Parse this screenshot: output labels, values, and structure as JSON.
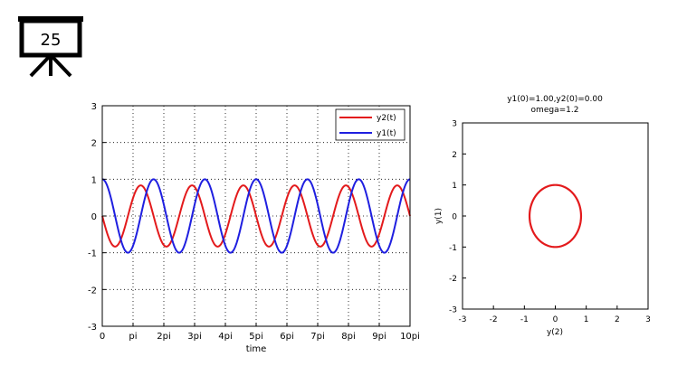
{
  "slide": {
    "number": "25"
  },
  "chart_data": [
    {
      "type": "line",
      "title": "",
      "xlabel": "time",
      "ylabel": "",
      "xlim": [
        0,
        31.4159
      ],
      "ylim": [
        -3,
        3
      ],
      "x_ticks": [
        {
          "value": 0,
          "label": "0"
        },
        {
          "value": 3.1416,
          "label": "pi"
        },
        {
          "value": 6.2832,
          "label": "2pi"
        },
        {
          "value": 9.4248,
          "label": "3pi"
        },
        {
          "value": 12.5664,
          "label": "4pi"
        },
        {
          "value": 15.708,
          "label": "5pi"
        },
        {
          "value": 18.8496,
          "label": "6pi"
        },
        {
          "value": 21.9911,
          "label": "7pi"
        },
        {
          "value": 25.1327,
          "label": "8pi"
        },
        {
          "value": 28.2743,
          "label": "9pi"
        },
        {
          "value": 31.4159,
          "label": "10pi"
        }
      ],
      "y_ticks": [
        "3",
        "2",
        "1",
        "0",
        "-1",
        "-2",
        "-3"
      ],
      "grid": true,
      "legend": "top-right",
      "omega": 1.2,
      "series": [
        {
          "name": "y2(t)",
          "color": "#e31a1c",
          "function": "-sin(omega*t)/omega",
          "amplitude": 0.833
        },
        {
          "name": "y1(t)",
          "color": "#1f1fe0",
          "function": "cos(omega*t)",
          "amplitude": 1.0
        }
      ]
    },
    {
      "type": "line",
      "title": "y1(0)=1.00,y2(0)=0.00",
      "subtitle": "omega=1.2",
      "xlabel": "y(2)",
      "ylabel": "y(1)",
      "xlim": [
        -3,
        3
      ],
      "ylim": [
        -3,
        3
      ],
      "x_ticks": [
        "-3",
        "-2",
        "-1",
        "0",
        "1",
        "2",
        "3"
      ],
      "y_ticks": [
        "3",
        "2",
        "1",
        "0",
        "-1",
        "-2",
        "-3"
      ],
      "grid": false,
      "series": [
        {
          "color": "#e31a1c",
          "x_radius": 0.833,
          "y_radius": 1.0,
          "center": [
            0,
            0
          ]
        }
      ]
    }
  ]
}
